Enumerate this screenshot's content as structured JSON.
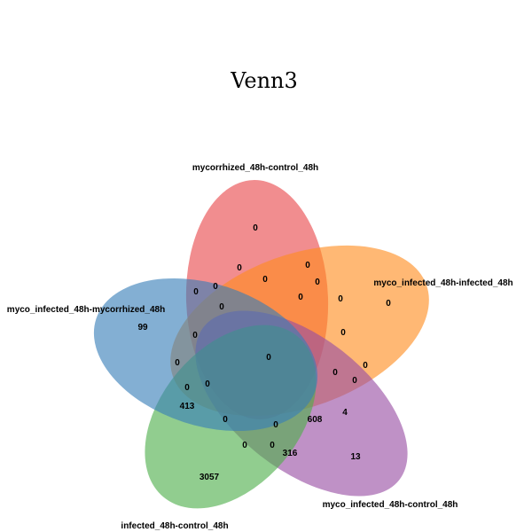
{
  "title": "Venn3",
  "sets": [
    {
      "name": "mycorrhized_48h-control_48h",
      "color": "#e8474b"
    },
    {
      "name": "myco_infected_48h-infected_48h",
      "color": "#ff8d1e"
    },
    {
      "name": "myco_infected_48h-control_48h",
      "color": "#984ea3"
    },
    {
      "name": "infected_48h-control_48h",
      "color": "#4daf4a"
    },
    {
      "name": "myco_infected_48h-mycorrhized_48h",
      "color": "#377eb8"
    }
  ],
  "counts": [
    "0",
    "0",
    "0",
    "0",
    "99",
    "0",
    "0",
    "0",
    "0",
    "0",
    "0",
    "0",
    "0",
    "0",
    "0",
    "0",
    "413",
    "0",
    "0",
    "0",
    "0",
    "0",
    "608",
    "4",
    "0",
    "0",
    "316",
    "13",
    "3057"
  ]
}
